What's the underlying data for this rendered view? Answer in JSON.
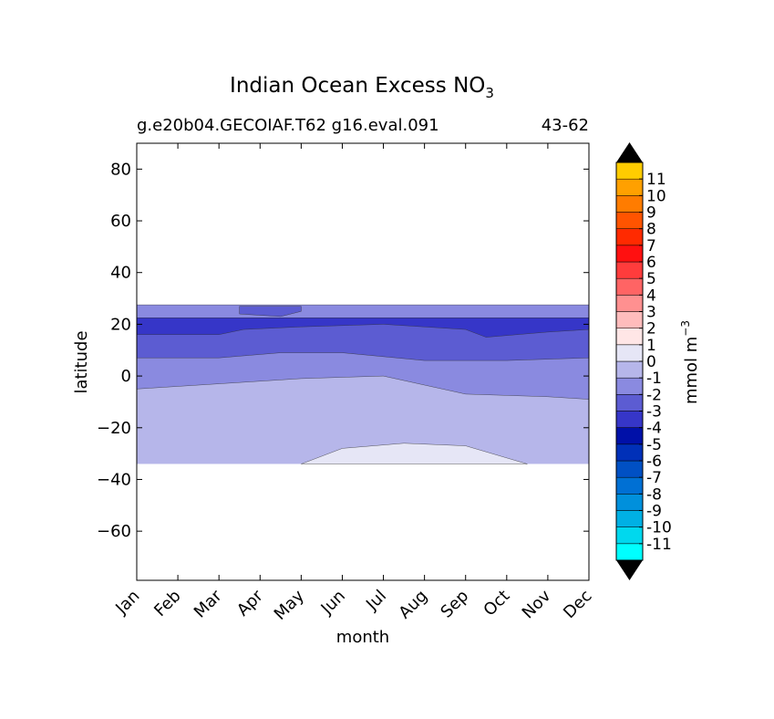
{
  "chart_data": {
    "type": "heatmap",
    "title": "Indian Ocean Excess NO",
    "title_subscript": "3",
    "subtitle_left": "g.e20b04.GECOIAF.T62 g16.eval.091",
    "subtitle_right": "43-62",
    "xlabel": "month",
    "ylabel": "latitude",
    "x_categories": [
      "Jan",
      "Feb",
      "Mar",
      "Apr",
      "May",
      "Jun",
      "Jul",
      "Aug",
      "Sep",
      "Oct",
      "Nov",
      "Dec"
    ],
    "y_ticks": [
      80,
      60,
      40,
      20,
      0,
      -20,
      -40,
      -60
    ],
    "y_tick_labels": [
      "80",
      "60",
      "40",
      "20",
      "0",
      "−20",
      "−40",
      "−60"
    ],
    "ylim": [
      -79,
      90
    ],
    "xlim": [
      0,
      11
    ],
    "data_lat_range": [
      -34,
      27.5
    ],
    "colorbar": {
      "label": "mmol m",
      "label_exponent": "−3",
      "levels": [
        -12,
        -11,
        -10,
        -9,
        -8,
        -7,
        -6,
        -5,
        -4,
        -3,
        -2,
        -1,
        0,
        1,
        2,
        3,
        4,
        5,
        6,
        7,
        8,
        9,
        10,
        11,
        12
      ],
      "tick_labels": [
        "-11",
        "-10",
        "-9",
        "-8",
        "-7",
        "-6",
        "-5",
        "-4",
        "-3",
        "-2",
        "-1",
        "0",
        "1",
        "2",
        "3",
        "4",
        "5",
        "6",
        "7",
        "8",
        "9",
        "10",
        "11"
      ],
      "colors": [
        "#00ffff",
        "#00d8ee",
        "#00b0e4",
        "#0090dc",
        "#0070d4",
        "#0050c4",
        "#0030b8",
        "#0010a8",
        "#3636c8",
        "#5c5cd2",
        "#8a8ae0",
        "#b6b6ea",
        "#e6e6f6",
        "#ffe6e6",
        "#ffbcbc",
        "#ff9090",
        "#ff6464",
        "#ff3c3c",
        "#ff1010",
        "#ff2a00",
        "#ff5400",
        "#ff7c00",
        "#ffa000",
        "#ffcc00",
        "#ffff00"
      ],
      "extend_color": "#000000"
    },
    "contour_bands": [
      {
        "level_range": [
          -3,
          -2
        ],
        "color": "#8a8ae0",
        "lower": [
          [
            0,
            -5
          ],
          [
            2,
            -3
          ],
          [
            4,
            -1
          ],
          [
            6,
            0
          ],
          [
            8,
            -7
          ],
          [
            10,
            -8
          ],
          [
            11,
            -9
          ]
        ],
        "upper": [
          [
            0,
            27.5
          ],
          [
            11,
            27.5
          ]
        ]
      },
      {
        "level_range": [
          -4,
          -3
        ],
        "color": "#5c5cd2",
        "lower": [
          [
            0,
            7
          ],
          [
            2,
            7
          ],
          [
            3.5,
            9
          ],
          [
            5,
            9
          ],
          [
            7,
            6
          ],
          [
            9,
            6
          ],
          [
            11,
            7
          ]
        ],
        "upper": [
          [
            0,
            22.5
          ],
          [
            11,
            22.5
          ]
        ]
      },
      {
        "level_range": [
          -5,
          -4
        ],
        "color": "#3636c8",
        "lower": [
          [
            0,
            16
          ],
          [
            2,
            16
          ],
          [
            2.6,
            18
          ],
          [
            4,
            19
          ],
          [
            6,
            20
          ],
          [
            8,
            18
          ],
          [
            8.5,
            15
          ],
          [
            10,
            17
          ],
          [
            11,
            18
          ]
        ],
        "upper": [
          [
            0,
            22.5
          ],
          [
            11,
            22.5
          ]
        ]
      },
      {
        "level_range": [
          -4,
          -3
        ],
        "color": "#5c5cd2",
        "lower": [
          [
            2.5,
            24
          ],
          [
            3.5,
            23
          ],
          [
            4,
            25
          ]
        ],
        "upper": [
          [
            2.5,
            27
          ],
          [
            4,
            27
          ]
        ]
      },
      {
        "level_range": [
          -1,
          0
        ],
        "color": "#e6e6f6",
        "lower": [
          [
            4,
            -34
          ],
          [
            9.5,
            -34
          ]
        ],
        "upper": [
          [
            4,
            -34
          ],
          [
            5,
            -28
          ],
          [
            6.5,
            -26
          ],
          [
            8,
            -27
          ],
          [
            9.5,
            -34
          ]
        ]
      }
    ],
    "background_band": {
      "level_range": [
        -2,
        -1
      ],
      "color": "#b6b6ea",
      "lat_range": [
        -34,
        27.5
      ]
    }
  }
}
